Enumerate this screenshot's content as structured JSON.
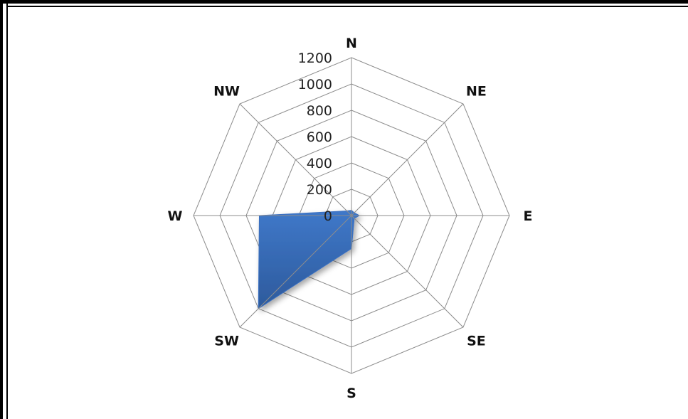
{
  "chart_data": {
    "type": "radar",
    "categories": [
      "N",
      "NE",
      "E",
      "SE",
      "S",
      "SW",
      "W",
      "NW"
    ],
    "series": [
      {
        "values": [
          40,
          30,
          60,
          30,
          250,
          1000,
          700,
          50
        ]
      }
    ],
    "rlim": [
      0,
      1200
    ],
    "rticks": [
      0,
      200,
      400,
      600,
      800,
      1000,
      1200
    ],
    "rtick_labels": [
      "0",
      "200",
      "400",
      "600",
      "800",
      "1000",
      "1200"
    ],
    "grid": true,
    "legend": "none",
    "colors": {
      "fill": "#3a6fc0",
      "fill_dark": "#2e5d9e",
      "grid": "#8c8c8c"
    }
  }
}
